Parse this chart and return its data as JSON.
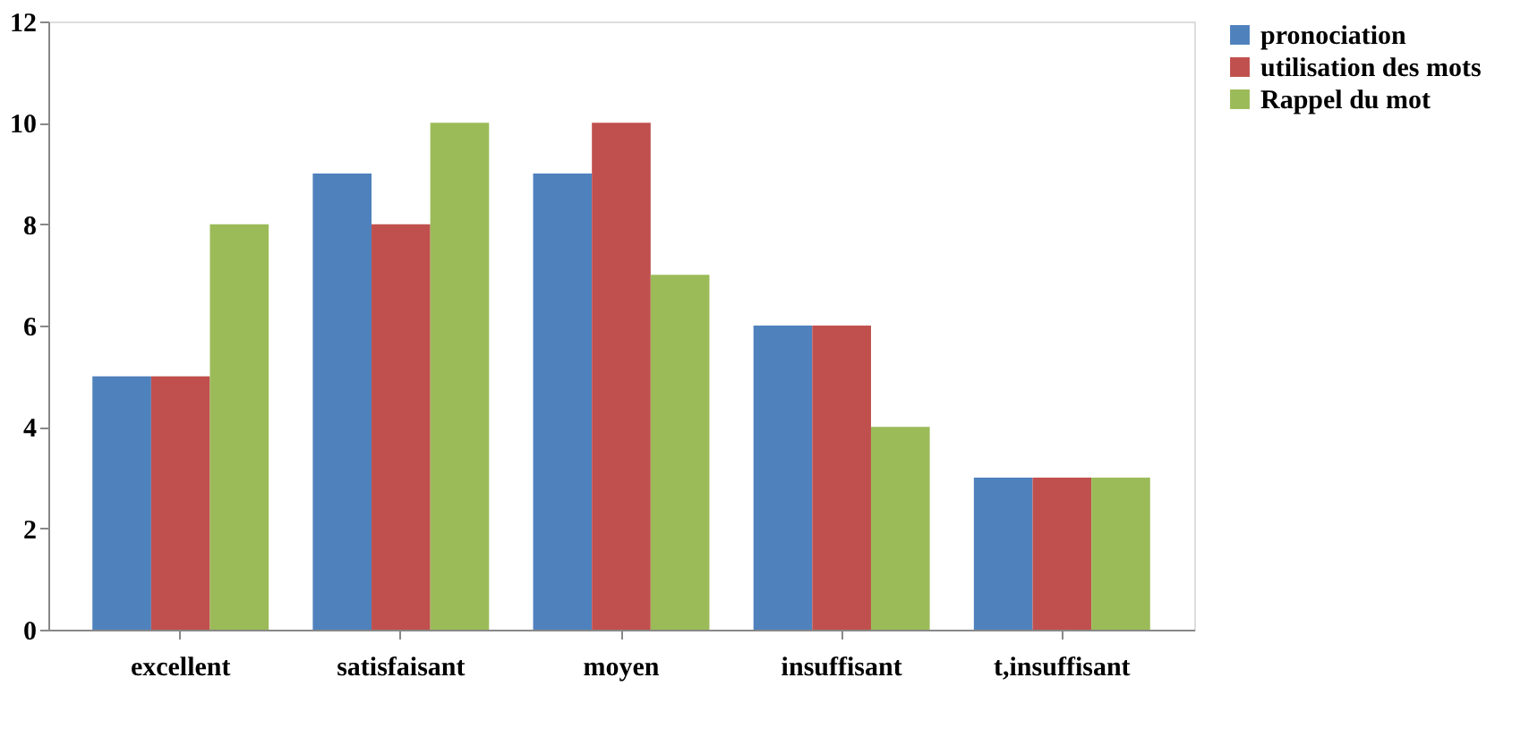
{
  "chart_data": {
    "type": "bar",
    "categories": [
      "excellent",
      "satisfaisant",
      "moyen",
      "insuffisant",
      "t,insuffisant"
    ],
    "series": [
      {
        "name": "pronociation",
        "color": "#4f81bd",
        "values": [
          5,
          9,
          9,
          6,
          3
        ]
      },
      {
        "name": "utilisation des mots",
        "color": "#c0504d",
        "values": [
          5,
          8,
          10,
          6,
          3
        ]
      },
      {
        "name": "Rappel du mot",
        "color": "#9bbb59",
        "values": [
          8,
          10,
          7,
          4,
          3
        ]
      }
    ],
    "ylim": [
      0,
      12
    ],
    "yticks": [
      0,
      2,
      4,
      6,
      8,
      10,
      12
    ],
    "grid": false,
    "legend": "right"
  }
}
